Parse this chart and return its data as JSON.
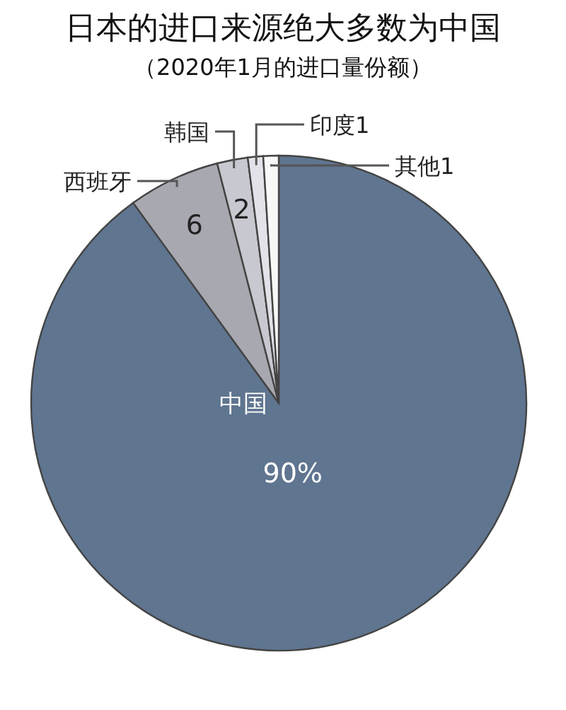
{
  "chart_data": {
    "type": "pie",
    "title": "日本的进口来源绝大多数为中国",
    "subtitle": "（2020年1月的进口量份额）",
    "categories": [
      "中国",
      "西班牙",
      "韩国",
      "印度",
      "其他"
    ],
    "values": [
      90,
      6,
      2,
      1,
      1
    ],
    "colors": [
      "#5f7590",
      "#a8a8b0",
      "#c8c8d0",
      "#e2e2e8",
      "#f8f8f8"
    ],
    "value_labels": [
      "90%",
      "6",
      "2",
      "1",
      "1"
    ]
  }
}
